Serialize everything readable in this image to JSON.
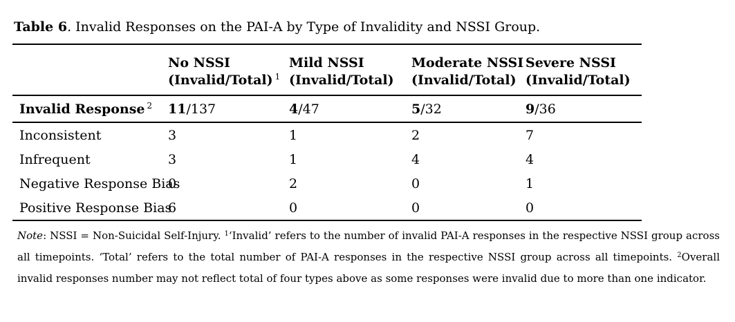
{
  "title": {
    "prefix": "Table 6",
    "text": ". Invalid Responses on the PAI-A by Type of Invalidity and NSSI Group."
  },
  "table": {
    "headers": [
      {
        "group": "No NSSI",
        "sub": "(Invalid/Total)",
        "sup": "1"
      },
      {
        "group": "Mild NSSI",
        "sub": "(Invalid/Total)"
      },
      {
        "group": "Moderate NSSI",
        "sub": "(Invalid/Total)"
      },
      {
        "group": "Severe NSSI",
        "sub": "(Invalid/Total)"
      }
    ],
    "summary_row": {
      "label": "Invalid Response",
      "sup": "2",
      "cells": [
        {
          "invalid": "11",
          "total": "/137"
        },
        {
          "invalid": "4",
          "total": "/47"
        },
        {
          "invalid": "5",
          "total": "/32"
        },
        {
          "invalid": "9",
          "total": "/36"
        }
      ]
    },
    "rows": [
      {
        "label": "Inconsistent",
        "values": [
          "3",
          "1",
          "2",
          "7"
        ]
      },
      {
        "label": "Infrequent",
        "values": [
          "3",
          "1",
          "4",
          "4"
        ]
      },
      {
        "label": "Negative Response Bias",
        "values": [
          "0",
          "2",
          "0",
          "1"
        ]
      },
      {
        "label": "Positive Response Bias",
        "values": [
          "6",
          "0",
          "0",
          "0"
        ]
      }
    ]
  },
  "note": {
    "label": "Note",
    "seg1": ": NSSI = Non-Suicidal Self-Injury. ",
    "sup1": "1",
    "seg2": "‘Invalid’ refers to the number of invalid PAI-A responses in the respective NSSI group across all timepoints. ‘Total’ refers to the total number of PAI-A responses in the respective NSSI group across all timepoints. ",
    "sup2": "2",
    "seg3": "Overall invalid responses number may not reflect total of four types above as some responses were invalid due to more than one indicator."
  }
}
